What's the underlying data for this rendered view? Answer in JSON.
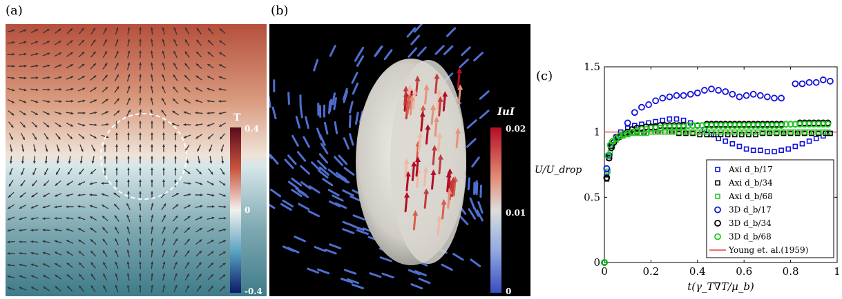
{
  "panels": {
    "a": {
      "label": "(a)",
      "colorbar": {
        "title": "T",
        "ticks": [
          "0.4",
          "0",
          "-0.4"
        ]
      }
    },
    "b": {
      "label": "(b)",
      "colorbar": {
        "title": "IuI",
        "ticks": [
          "0.02",
          "0.01",
          "0"
        ]
      }
    },
    "c": {
      "label": "(c)"
    }
  },
  "colors": {
    "warm": "#b5503c",
    "cool": "#3e7b89",
    "vector_dark": "#333333",
    "vector_blue": "#4f6fd0",
    "axi17": "#1010dd",
    "axi34": "#000000",
    "axi68": "#22cc22",
    "young": "#ee5555"
  },
  "chart_data": {
    "type": "scatter",
    "xlabel": "t(γ_T∇T/μ_b)",
    "ylabel": "U/U_drop",
    "xlim": [
      0,
      1
    ],
    "ylim": [
      0,
      1.5
    ],
    "xticks": [
      "0",
      "0.2",
      "0.4",
      "0.6",
      "0.8",
      "1"
    ],
    "yticks": [
      "0",
      "0.5",
      "1",
      "1.5"
    ],
    "legend_position": "bottom-right",
    "series": [
      {
        "name": "Axi d_b/17",
        "marker": "square",
        "color": "#1010dd",
        "x": [
          0,
          0.01,
          0.02,
          0.03,
          0.05,
          0.07,
          0.1,
          0.13,
          0.16,
          0.19,
          0.22,
          0.25,
          0.28,
          0.31,
          0.34,
          0.37,
          0.4,
          0.43,
          0.46,
          0.49,
          0.52,
          0.55,
          0.58,
          0.61,
          0.64,
          0.67,
          0.7,
          0.73,
          0.76,
          0.79,
          0.82,
          0.85,
          0.88,
          0.91,
          0.94,
          0.97
        ],
        "y": [
          0,
          0.68,
          0.82,
          0.9,
          0.96,
          1.0,
          1.03,
          1.05,
          1.06,
          1.07,
          1.08,
          1.09,
          1.1,
          1.1,
          1.09,
          1.07,
          1.05,
          1.02,
          0.98,
          0.95,
          0.93,
          0.91,
          0.89,
          0.87,
          0.86,
          0.86,
          0.85,
          0.85,
          0.86,
          0.87,
          0.89,
          0.91,
          0.93,
          0.95,
          0.97,
          0.99
        ]
      },
      {
        "name": "Axi d_b/34",
        "marker": "square",
        "color": "#000000",
        "x": [
          0,
          0.01,
          0.02,
          0.03,
          0.05,
          0.07,
          0.09,
          0.11,
          0.14,
          0.17,
          0.2,
          0.23,
          0.26,
          0.29,
          0.32,
          0.35,
          0.38,
          0.41,
          0.44,
          0.47,
          0.5,
          0.53,
          0.56,
          0.59,
          0.62,
          0.65,
          0.68,
          0.71,
          0.74,
          0.77,
          0.8,
          0.83,
          0.86,
          0.89,
          0.92,
          0.95,
          0.97
        ],
        "y": [
          0,
          0.64,
          0.8,
          0.89,
          0.94,
          0.97,
          0.99,
          1.0,
          1.0,
          1.0,
          1.0,
          1.0,
          1.0,
          1.0,
          0.99,
          0.99,
          0.99,
          0.98,
          0.98,
          0.98,
          0.98,
          0.98,
          0.98,
          0.98,
          0.98,
          0.98,
          0.99,
          0.99,
          0.99,
          0.99,
          0.99,
          0.99,
          0.99,
          0.99,
          0.99,
          0.99,
          0.99
        ]
      },
      {
        "name": "Axi d_b/68",
        "marker": "square",
        "color": "#22cc22",
        "x": [
          0,
          0.015,
          0.025,
          0.035,
          0.05,
          0.065,
          0.08,
          0.1,
          0.12,
          0.14,
          0.16,
          0.18,
          0.2,
          0.22,
          0.24,
          0.26,
          0.28,
          0.3,
          0.32,
          0.34,
          0.36,
          0.38,
          0.4,
          0.42,
          0.44,
          0.46,
          0.48,
          0.5,
          0.52,
          0.54,
          0.56,
          0.58,
          0.6,
          0.62,
          0.64,
          0.66,
          0.68,
          0.7,
          0.72,
          0.74,
          0.76,
          0.78,
          0.8,
          0.82,
          0.84,
          0.86,
          0.88,
          0.9,
          0.92,
          0.94,
          0.96
        ],
        "y": [
          0,
          0.7,
          0.84,
          0.9,
          0.94,
          0.96,
          0.97,
          0.98,
          0.99,
          0.99,
          0.99,
          0.99,
          1.0,
          1.0,
          1.0,
          1.0,
          1.0,
          1.0,
          1.0,
          1.0,
          1.0,
          1.0,
          1.0,
          1.0,
          1.0,
          1.0,
          1.0,
          1.0,
          1.0,
          1.0,
          1.0,
          1.0,
          1.0,
          1.0,
          1.0,
          1.0,
          1.0,
          1.0,
          1.0,
          1.0,
          1.0,
          1.0,
          1.0,
          1.0,
          1.0,
          1.0,
          1.0,
          1.0,
          1.0,
          1.0,
          1.0
        ]
      },
      {
        "name": "3D d_b/17",
        "marker": "circle",
        "color": "#1010dd",
        "x": [
          0,
          0.01,
          0.02,
          0.03,
          0.05,
          0.1,
          0.13,
          0.16,
          0.19,
          0.22,
          0.25,
          0.28,
          0.31,
          0.34,
          0.37,
          0.4,
          0.43,
          0.46,
          0.49,
          0.52,
          0.55,
          0.58,
          0.61,
          0.64,
          0.67,
          0.7,
          0.73,
          0.76,
          0.82,
          0.85,
          0.88,
          0.91,
          0.94,
          0.97
        ],
        "y": [
          0,
          0.72,
          0.82,
          0.9,
          0.96,
          1.07,
          1.15,
          1.19,
          1.21,
          1.24,
          1.26,
          1.27,
          1.28,
          1.28,
          1.29,
          1.3,
          1.32,
          1.33,
          1.32,
          1.31,
          1.29,
          1.27,
          1.28,
          1.29,
          1.28,
          1.27,
          1.26,
          1.26,
          1.37,
          1.37,
          1.38,
          1.38,
          1.4,
          1.39
        ]
      },
      {
        "name": "3D d_b/34",
        "marker": "circle",
        "color": "#000000",
        "x": [
          0,
          0.01,
          0.02,
          0.03,
          0.04,
          0.06,
          0.08,
          0.1,
          0.12,
          0.14,
          0.16,
          0.18,
          0.2,
          0.22,
          0.24,
          0.26,
          0.28,
          0.3,
          0.32,
          0.34,
          0.36,
          0.38,
          0.4,
          0.42,
          0.44,
          0.46,
          0.48,
          0.5,
          0.52,
          0.54,
          0.56,
          0.58,
          0.6,
          0.62,
          0.64,
          0.66,
          0.68,
          0.7,
          0.72,
          0.74,
          0.76,
          0.78,
          0.8,
          0.82,
          0.84,
          0.86,
          0.88,
          0.9,
          0.92,
          0.94,
          0.96
        ],
        "y": [
          0,
          0.65,
          0.8,
          0.88,
          0.92,
          0.96,
          0.98,
          1.0,
          1.02,
          1.03,
          1.03,
          1.04,
          1.04,
          1.04,
          1.05,
          1.05,
          1.05,
          1.05,
          1.05,
          1.05,
          1.05,
          1.05,
          1.05,
          1.05,
          1.06,
          1.06,
          1.06,
          1.06,
          1.06,
          1.06,
          1.06,
          1.06,
          1.06,
          1.06,
          1.06,
          1.06,
          1.06,
          1.06,
          1.06,
          1.06,
          1.06,
          1.06,
          1.06,
          1.06,
          1.07,
          1.07,
          1.07,
          1.07,
          1.07,
          1.07,
          1.07
        ]
      },
      {
        "name": "3D d_b/68",
        "marker": "circle",
        "color": "#22cc22",
        "x": [
          0,
          0.015,
          0.025,
          0.035,
          0.05,
          0.065,
          0.08,
          0.1,
          0.12,
          0.14,
          0.16,
          0.18,
          0.2,
          0.22,
          0.24,
          0.26,
          0.28,
          0.3,
          0.32,
          0.34,
          0.36,
          0.38,
          0.4,
          0.42,
          0.44,
          0.46,
          0.48,
          0.5,
          0.52,
          0.54,
          0.56,
          0.58,
          0.6,
          0.62,
          0.64,
          0.66,
          0.68,
          0.7,
          0.72,
          0.74,
          0.76,
          0.78,
          0.8,
          0.82,
          0.84,
          0.86,
          0.88,
          0.9,
          0.92,
          0.94,
          0.96
        ],
        "y": [
          0,
          0.82,
          0.9,
          0.93,
          0.95,
          0.97,
          0.98,
          0.99,
          1.0,
          1.01,
          1.02,
          1.02,
          1.03,
          1.03,
          1.03,
          1.04,
          1.04,
          1.04,
          1.04,
          1.04,
          1.05,
          1.05,
          1.05,
          1.05,
          1.05,
          1.05,
          1.05,
          1.05,
          1.05,
          1.05,
          1.05,
          1.05,
          1.05,
          1.05,
          1.05,
          1.05,
          1.05,
          1.05,
          1.05,
          1.05,
          1.05,
          1.06,
          1.06,
          1.06,
          1.06,
          1.06,
          1.06,
          1.06,
          1.06,
          1.06,
          1.06
        ]
      },
      {
        "name": "Young et. al.(1959)",
        "marker": "line",
        "color": "#ee5555",
        "x": [
          0,
          1
        ],
        "y": [
          1,
          1
        ]
      }
    ]
  }
}
